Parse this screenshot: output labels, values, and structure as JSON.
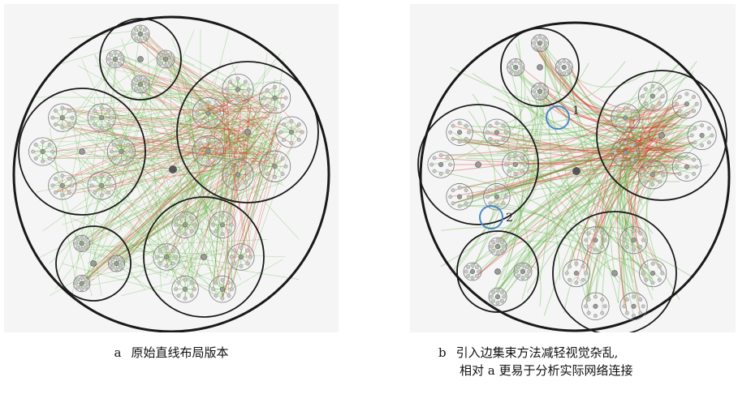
{
  "panel_a": {
    "caption_letter": "a",
    "caption_text": "原始直线布局版本"
  },
  "panel_b": {
    "caption_letter": "b",
    "caption_line1": "引入边集束方法减轻视觉杂乱,",
    "caption_line2": "相对 a 更易于分析实际网络连接",
    "markers": [
      {
        "label": "1"
      },
      {
        "label": "2"
      }
    ]
  },
  "colors": {
    "edge_green": "#5db33e",
    "edge_red": "#d62a1a",
    "node_gray": "#9a9a9a",
    "outline": "#1a1a1a",
    "marker_blue": "#4a88c7"
  }
}
